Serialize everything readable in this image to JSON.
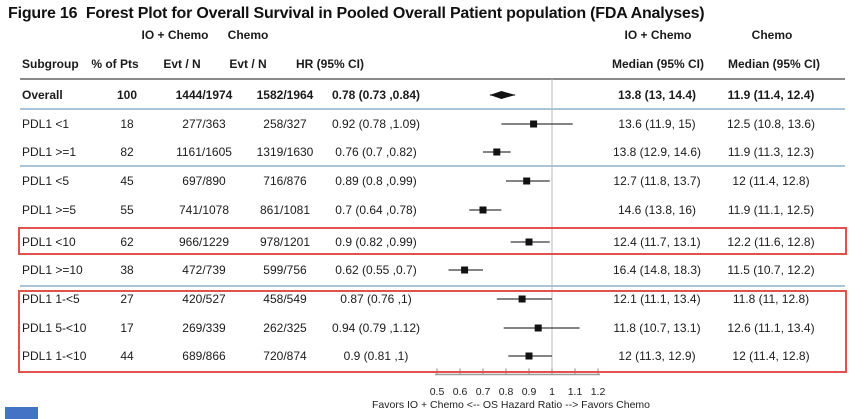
{
  "figure": {
    "title": "Figure 16  Forest Plot for Overall Survival in Pooled Overall Patient population (FDA Analyses)"
  },
  "table": {
    "group_headers": [
      {
        "label": "IO + Chemo"
      },
      {
        "label": "Chemo"
      },
      {
        "label": "IO + Chemo"
      },
      {
        "label": "Chemo"
      }
    ],
    "column_headers": {
      "subgroup": "Subgroup",
      "pct": "% of Pts",
      "evt_io": "Evt / N",
      "evt_chemo": "Evt / N",
      "hr": "HR (95% CI)",
      "median_io": "Median (95% CI)",
      "median_chemo": "Median (95% CI)"
    }
  },
  "chart_data": {
    "type": "forest",
    "title": "Forest Plot for Overall Survival in Pooled Overall Patient population (FDA Analyses)",
    "rows": [
      {
        "subgroup": "Overall",
        "pct": "100",
        "evt_io": "1444/1974",
        "evt_chemo": "1582/1964",
        "hr_text": "0.78 (0.73 ,0.84)",
        "hr": 0.78,
        "lo": 0.73,
        "hi": 0.84,
        "median_io": "13.8 (13, 14.4)",
        "median_chemo": "11.9 (11.4, 12.4)",
        "bold": true,
        "marker": "diamond"
      },
      {
        "subgroup": "PDL1 <1",
        "pct": "18",
        "evt_io": "277/363",
        "evt_chemo": "258/327",
        "hr_text": "0.92 (0.78 ,1.09)",
        "hr": 0.92,
        "lo": 0.78,
        "hi": 1.09,
        "median_io": "13.6 (11.9, 15)",
        "median_chemo": "12.5 (10.8, 13.6)",
        "bold": false,
        "marker": "square"
      },
      {
        "subgroup": "PDL1 >=1",
        "pct": "82",
        "evt_io": "1161/1605",
        "evt_chemo": "1319/1630",
        "hr_text": "0.76 (0.7 ,0.82)",
        "hr": 0.76,
        "lo": 0.7,
        "hi": 0.82,
        "median_io": "13.8 (12.9, 14.6)",
        "median_chemo": "11.9 (11.3, 12.3)",
        "bold": false,
        "marker": "square"
      },
      {
        "subgroup": "PDL1 <5",
        "pct": "45",
        "evt_io": "697/890",
        "evt_chemo": "716/876",
        "hr_text": "0.89 (0.8 ,0.99)",
        "hr": 0.89,
        "lo": 0.8,
        "hi": 0.99,
        "median_io": "12.7 (11.8, 13.7)",
        "median_chemo": "12 (11.4, 12.8)",
        "bold": false,
        "marker": "square"
      },
      {
        "subgroup": "PDL1 >=5",
        "pct": "55",
        "evt_io": "741/1078",
        "evt_chemo": "861/1081",
        "hr_text": "0.7 (0.64 ,0.78)",
        "hr": 0.7,
        "lo": 0.64,
        "hi": 0.78,
        "median_io": "14.6 (13.8, 16)",
        "median_chemo": "11.9 (11.1, 12.5)",
        "bold": false,
        "marker": "square"
      },
      {
        "subgroup": "PDL1 <10",
        "pct": "62",
        "evt_io": "966/1229",
        "evt_chemo": "978/1201",
        "hr_text": "0.9 (0.82 ,0.99)",
        "hr": 0.9,
        "lo": 0.82,
        "hi": 0.99,
        "median_io": "12.4 (11.7, 13.1)",
        "median_chemo": "12.2 (11.6, 12.8)",
        "bold": false,
        "marker": "square",
        "highlighted": true
      },
      {
        "subgroup": "PDL1 >=10",
        "pct": "38",
        "evt_io": "472/739",
        "evt_chemo": "599/756",
        "hr_text": "0.62 (0.55 ,0.7)",
        "hr": 0.62,
        "lo": 0.55,
        "hi": 0.7,
        "median_io": "16.4 (14.8, 18.3)",
        "median_chemo": "11.5 (10.7, 12.2)",
        "bold": false,
        "marker": "square"
      },
      {
        "subgroup": "PDL1 1-<5",
        "pct": "27",
        "evt_io": "420/527",
        "evt_chemo": "458/549",
        "hr_text": "0.87 (0.76 ,1)",
        "hr": 0.87,
        "lo": 0.76,
        "hi": 1.0,
        "median_io": "12.1 (11.1, 13.4)",
        "median_chemo": "11.8 (11, 12.8)",
        "bold": false,
        "marker": "square",
        "highlighted": true
      },
      {
        "subgroup": "PDL1 5-<10",
        "pct": "17",
        "evt_io": "269/339",
        "evt_chemo": "262/325",
        "hr_text": "0.94 (0.79 ,1.12)",
        "hr": 0.94,
        "lo": 0.79,
        "hi": 1.12,
        "median_io": "11.8 (10.7, 13.1)",
        "median_chemo": "12.6 (11.1, 13.4)",
        "bold": false,
        "marker": "square",
        "highlighted": true
      },
      {
        "subgroup": "PDL1 1-<10",
        "pct": "44",
        "evt_io": "689/866",
        "evt_chemo": "720/874",
        "hr_text": "0.9 (0.81 ,1)",
        "hr": 0.9,
        "lo": 0.81,
        "hi": 1.0,
        "median_io": "12 (11.3, 12.9)",
        "median_chemo": "12 (11.4, 12.8)",
        "bold": false,
        "marker": "square",
        "highlighted": true
      }
    ],
    "axis": {
      "min": 0.5,
      "max": 1.2,
      "ticks": [
        0.5,
        0.6,
        0.7,
        0.8,
        0.9,
        1,
        1.1,
        1.2
      ],
      "tick_labels": [
        "0.5",
        "0.6",
        "0.7",
        "0.8",
        "0.9",
        "1",
        "1.1",
        "1.2"
      ],
      "ref_line": 1,
      "label": "Favors IO + Chemo <-- OS Hazard Ratio --> Favors Chemo"
    },
    "highlighted_subgroups": [
      "PDL1 <10",
      "PDL1 1-<5",
      "PDL1 5-<10",
      "PDL1 1-<10"
    ]
  },
  "colors": {
    "highlight_box": "#e0524a",
    "separator_blue": "#a8c6d8",
    "header_rule": "#8a8a8a",
    "axis_gray": "#9a9a9a",
    "marker_black": "#121212",
    "artifact_blue": "#4472c4"
  }
}
